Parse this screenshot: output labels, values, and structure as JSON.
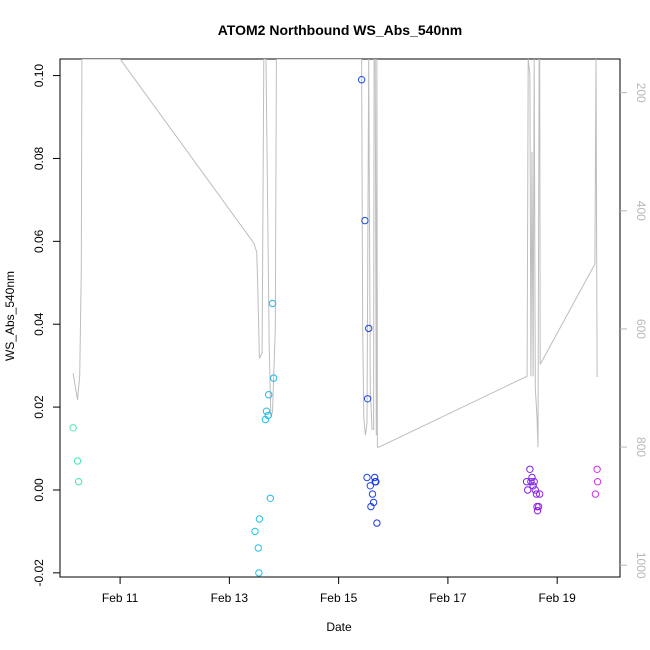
{
  "chart_data": {
    "type": "scatter",
    "title": "ATOM2 Northbound WS_Abs_540nm",
    "xlabel": "Date",
    "ylabel": "WS_Abs_540nm",
    "xlim": [
      9.9,
      20.15
    ],
    "ylim": [
      -0.021,
      0.104
    ],
    "y2lim": [
      1020,
      143
    ],
    "x_ticks": [
      11,
      13,
      15,
      17,
      19
    ],
    "x_tick_labels": [
      "Feb 11",
      "Feb 13",
      "Feb 15",
      "Feb 17",
      "Feb 19"
    ],
    "y_ticks": [
      -0.02,
      0.0,
      0.02,
      0.04,
      0.06,
      0.08,
      0.1
    ],
    "y_tick_labels": [
      "-0.02",
      "0.00",
      "0.02",
      "0.04",
      "0.06",
      "0.08",
      "0.10"
    ],
    "y2_ticks": [
      200,
      400,
      600,
      800,
      1000
    ],
    "y2_tick_labels": [
      "200",
      "400",
      "600",
      "800",
      "1000"
    ],
    "grid": false,
    "legend": "none",
    "series": [
      {
        "role": "points",
        "marker": "open-circle",
        "points": [
          {
            "x": 10.14,
            "y": 0.015,
            "color": "#4de8b4"
          },
          {
            "x": 10.22,
            "y": 0.007,
            "color": "#44e6b8"
          },
          {
            "x": 10.24,
            "y": 0.002,
            "color": "#40e4bc"
          },
          {
            "x": 13.47,
            "y": -0.01,
            "color": "#1fc8e6"
          },
          {
            "x": 13.53,
            "y": -0.014,
            "color": "#1fc6e6"
          },
          {
            "x": 13.55,
            "y": -0.007,
            "color": "#1fc4e6"
          },
          {
            "x": 13.54,
            "y": -0.02,
            "color": "#1fc2e8"
          },
          {
            "x": 13.66,
            "y": 0.017,
            "color": "#22c0e8"
          },
          {
            "x": 13.68,
            "y": 0.019,
            "color": "#22bee8"
          },
          {
            "x": 13.71,
            "y": 0.018,
            "color": "#22bce8"
          },
          {
            "x": 13.72,
            "y": 0.023,
            "color": "#22bae8"
          },
          {
            "x": 13.75,
            "y": -0.002,
            "color": "#22b8e8"
          },
          {
            "x": 13.79,
            "y": 0.045,
            "color": "#24b6ea"
          },
          {
            "x": 13.81,
            "y": 0.027,
            "color": "#24b4ea"
          },
          {
            "x": 15.42,
            "y": 0.099,
            "color": "#1a4ee6"
          },
          {
            "x": 15.48,
            "y": 0.065,
            "color": "#1a4ce6"
          },
          {
            "x": 15.52,
            "y": 0.003,
            "color": "#1a4ae6"
          },
          {
            "x": 15.53,
            "y": 0.022,
            "color": "#1a48e6"
          },
          {
            "x": 15.55,
            "y": 0.039,
            "color": "#1a46e6"
          },
          {
            "x": 15.58,
            "y": 0.001,
            "color": "#1a44e6"
          },
          {
            "x": 15.59,
            "y": -0.004,
            "color": "#1a42e6"
          },
          {
            "x": 15.62,
            "y": -0.001,
            "color": "#1a40e6"
          },
          {
            "x": 15.64,
            "y": -0.003,
            "color": "#1a3ee6"
          },
          {
            "x": 15.66,
            "y": 0.003,
            "color": "#1a3ce6"
          },
          {
            "x": 15.67,
            "y": 0.002,
            "color": "#1a3ae6"
          },
          {
            "x": 15.68,
            "y": 0.002,
            "color": "#1a38e6"
          },
          {
            "x": 15.7,
            "y": -0.008,
            "color": "#1a36e6"
          },
          {
            "x": 18.44,
            "y": 0.002,
            "color": "#7a20e8"
          },
          {
            "x": 18.46,
            "y": 0.0,
            "color": "#7c20e8"
          },
          {
            "x": 18.5,
            "y": 0.005,
            "color": "#7e20e8"
          },
          {
            "x": 18.52,
            "y": 0.002,
            "color": "#8020e8"
          },
          {
            "x": 18.54,
            "y": 0.003,
            "color": "#8220e8"
          },
          {
            "x": 18.56,
            "y": 0.001,
            "color": "#8420e8"
          },
          {
            "x": 18.58,
            "y": 0.002,
            "color": "#8620e8"
          },
          {
            "x": 18.6,
            "y": 0.0,
            "color": "#8820e8"
          },
          {
            "x": 18.62,
            "y": -0.001,
            "color": "#8a20e8"
          },
          {
            "x": 18.63,
            "y": -0.004,
            "color": "#8c20e8"
          },
          {
            "x": 18.64,
            "y": -0.005,
            "color": "#8e20e8"
          },
          {
            "x": 18.66,
            "y": -0.004,
            "color": "#9020e8"
          },
          {
            "x": 18.68,
            "y": -0.001,
            "color": "#9220e8"
          },
          {
            "x": 19.7,
            "y": -0.001,
            "color": "#cc2ee6"
          },
          {
            "x": 19.73,
            "y": 0.005,
            "color": "#ce2ee6"
          },
          {
            "x": 19.74,
            "y": 0.002,
            "color": "#d02ee6"
          }
        ]
      },
      {
        "role": "line",
        "axis": "right",
        "color": "#bdbdbd",
        "x": [
          10.14,
          10.22,
          10.26,
          10.29,
          10.3,
          10.31,
          11.0,
          13.45,
          13.5,
          13.52,
          13.55,
          13.6,
          13.63,
          13.67,
          13.73,
          13.76,
          13.79,
          13.84,
          13.86,
          13.88,
          15.42,
          15.44,
          15.46,
          15.49,
          15.52,
          15.55,
          15.58,
          15.61,
          15.64,
          15.65,
          15.67,
          15.69,
          15.7,
          15.71,
          15.74,
          18.45,
          18.47,
          18.5,
          18.52,
          18.54,
          18.56,
          18.58,
          18.6,
          18.63,
          18.65,
          18.67,
          18.68,
          18.69,
          19.69,
          19.71,
          19.73,
          19.75
        ],
        "y": [
          675,
          720,
          680,
          500,
          143,
          143,
          143,
          455,
          470,
          530,
          650,
          640,
          143,
          143,
          630,
          750,
          740,
          600,
          143,
          143,
          143,
          600,
          750,
          780,
          760,
          143,
          700,
          770,
          770,
          143,
          143,
          780,
          143,
          800,
          800,
          680,
          143,
          170,
          680,
          300,
          680,
          143,
          700,
          750,
          800,
          143,
          143,
          660,
          490,
          143,
          680,
          680
        ]
      }
    ]
  }
}
